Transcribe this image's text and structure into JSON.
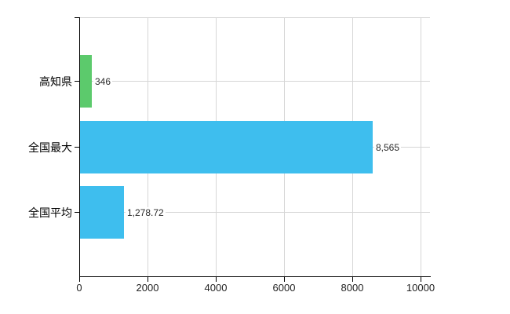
{
  "chart_data": {
    "type": "bar",
    "orientation": "horizontal",
    "title": "",
    "xlabel": "",
    "ylabel": "",
    "categories": [
      "高知県",
      "全国最大",
      "全国平均"
    ],
    "values": [
      346,
      8565,
      1278.72
    ],
    "value_labels": [
      "346",
      "8,565",
      "1,278.72"
    ],
    "bar_colors": [
      "#5cca6c",
      "#3ebeee",
      "#3ebeee"
    ],
    "x_ticks": [
      0,
      2000,
      4000,
      6000,
      8000,
      10000
    ],
    "x_tick_labels": [
      "0",
      "2000",
      "4000",
      "6000",
      "8000",
      "10000"
    ],
    "xlim": [
      0,
      10276
    ],
    "grid": true,
    "legend": false,
    "colors": {
      "grid": "#d6d6d6",
      "axis": "#000000",
      "value_text": "#2b2b2b",
      "tick_text": "#222222",
      "category_text": "#000000",
      "background": "#ffffff"
    }
  }
}
